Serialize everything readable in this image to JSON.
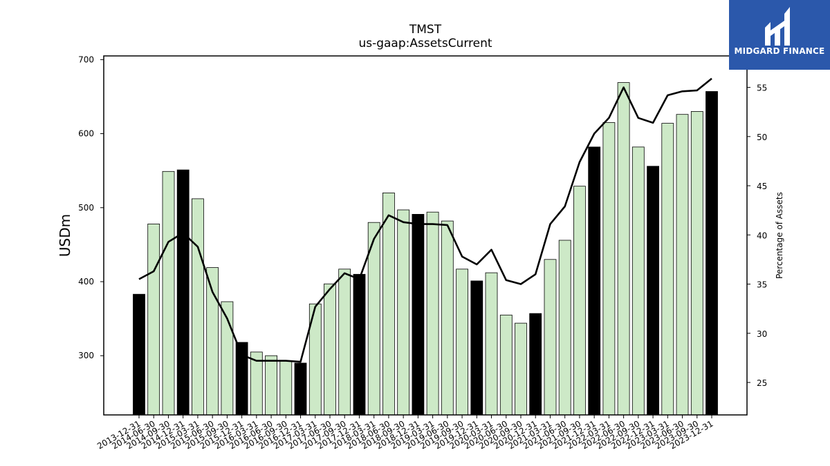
{
  "chart_data": {
    "type": "bar",
    "title": "TMST",
    "subtitle": "us-gaap:AssetsCurrent",
    "ylabel": "USDm",
    "y2label": "Percentage of Assets",
    "ylim": [
      220,
      705
    ],
    "y2lim": [
      21.7,
      58.2
    ],
    "yticks": [
      300,
      400,
      500,
      600,
      700
    ],
    "y2ticks": [
      25,
      30,
      35,
      40,
      45,
      50,
      55
    ],
    "categories": [
      "2013-12-31",
      "2014-06-30",
      "2014-09-30",
      "2014-12-31",
      "2015-03-31",
      "2015-06-30",
      "2015-09-30",
      "2015-12-31",
      "2016-03-31",
      "2016-06-30",
      "2016-09-30",
      "2016-12-31",
      "2017-03-31",
      "2017-06-30",
      "2017-09-30",
      "2017-12-31",
      "2018-03-31",
      "2018-06-30",
      "2018-09-30",
      "2018-12-31",
      "2019-03-31",
      "2019-06-30",
      "2019-09-30",
      "2019-12-31",
      "2020-03-31",
      "2020-06-30",
      "2020-09-30",
      "2020-12-31",
      "2021-03-31",
      "2021-06-30",
      "2021-09-30",
      "2021-12-31",
      "2022-03-31",
      "2022-06-30",
      "2022-09-30",
      "2022-12-31",
      "2023-03-31",
      "2023-06-30",
      "2023-09-30",
      "2023-12-31"
    ],
    "series": [
      {
        "type": "bar",
        "values": [
          383,
          478,
          549,
          551,
          512,
          419,
          373,
          318,
          305,
          300,
          293,
          290,
          370,
          397,
          417,
          410,
          480,
          520,
          497,
          491,
          494,
          482,
          417,
          401,
          412,
          355,
          344,
          357,
          430,
          456,
          529,
          582,
          615,
          669,
          582,
          556,
          614,
          626,
          630,
          657
        ],
        "annual_flags": [
          1,
          0,
          0,
          1,
          0,
          0,
          0,
          1,
          0,
          0,
          0,
          1,
          0,
          0,
          0,
          1,
          0,
          0,
          0,
          1,
          0,
          0,
          0,
          1,
          0,
          0,
          0,
          1,
          0,
          0,
          0,
          1,
          0,
          0,
          0,
          1,
          0,
          0,
          0,
          1
        ]
      },
      {
        "type": "line",
        "axis": "right",
        "values": [
          35.5,
          36.3,
          39.3,
          40.2,
          38.8,
          34.2,
          31.5,
          27.8,
          27.2,
          27.2,
          27.2,
          27.1,
          32.7,
          34.5,
          36.1,
          35.5,
          39.6,
          42.0,
          41.3,
          41.1,
          41.1,
          41.0,
          37.8,
          37.0,
          38.5,
          35.4,
          35.0,
          36.0,
          41.1,
          42.9,
          47.4,
          50.3,
          51.9,
          55.0,
          51.9,
          51.4,
          54.2,
          54.6,
          54.7,
          55.9
        ]
      }
    ],
    "colors": {
      "annual_bar": "#000000",
      "quarter_bar": "#cde9c7",
      "bar_edge": "#000000",
      "line": "#000000"
    },
    "grid": false
  },
  "logo": {
    "text": "MIDGARD FINANCE",
    "background": "#2b58ab"
  }
}
